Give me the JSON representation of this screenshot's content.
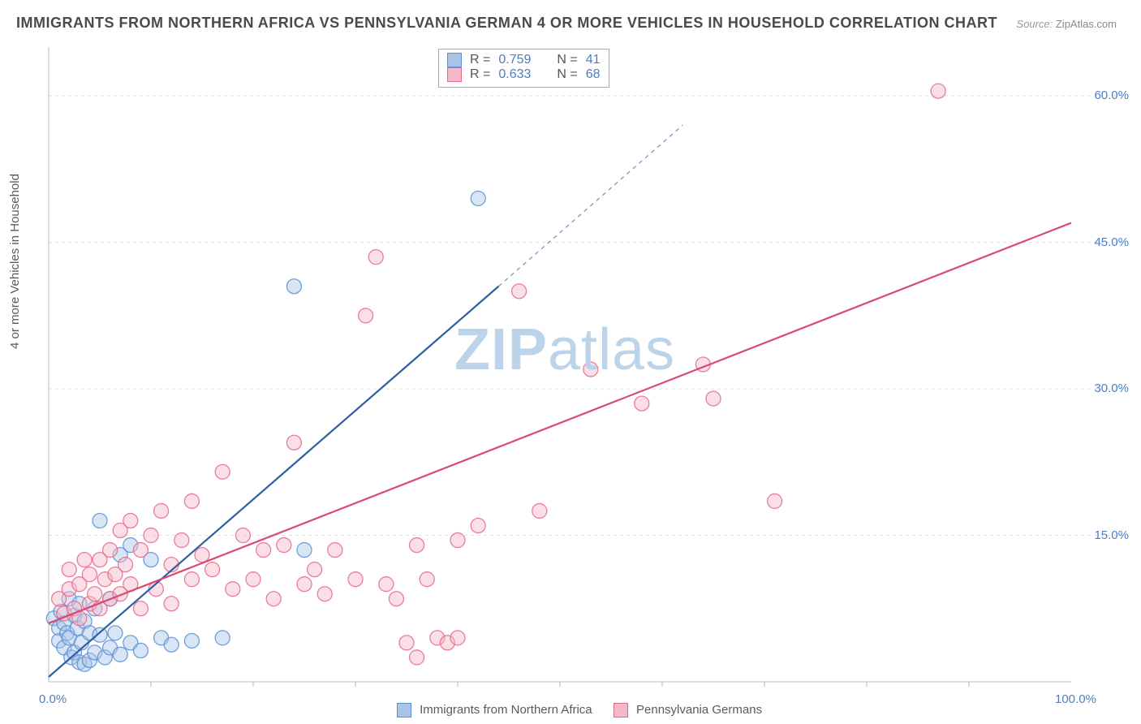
{
  "title": "IMMIGRANTS FROM NORTHERN AFRICA VS PENNSYLVANIA GERMAN 4 OR MORE VEHICLES IN HOUSEHOLD CORRELATION CHART",
  "source_label": "Source:",
  "source_value": "ZipAtlas.com",
  "watermark": "ZIPatlas",
  "y_axis_label": "4 or more Vehicles in Household",
  "bottom_legend": {
    "series1": "Immigrants from Northern Africa",
    "series2": "Pennsylvania Germans"
  },
  "chart": {
    "type": "scatter",
    "xlim": [
      0,
      100
    ],
    "ylim": [
      0,
      65
    ],
    "x_ticks": [
      0,
      100
    ],
    "x_tick_labels": [
      "0.0%",
      "100.0%"
    ],
    "y_ticks": [
      15,
      30,
      45,
      60
    ],
    "y_tick_labels": [
      "15.0%",
      "30.0%",
      "45.0%",
      "60.0%"
    ],
    "x_minor_ticks": [
      10,
      20,
      30,
      40,
      50,
      60,
      70,
      80,
      90
    ],
    "grid_color": "#e0e0e0",
    "axis_color": "#bbbbbb",
    "background_color": "#ffffff",
    "marker_radius": 9,
    "marker_opacity": 0.45,
    "series": [
      {
        "name": "Immigrants from Northern Africa",
        "color": "#5a8fd4",
        "fill": "#a8c5e8",
        "line_color": "#2e5fa3",
        "line_width": 2.2,
        "R": "0.759",
        "N": "41",
        "trend": {
          "x1": 0,
          "y1": 0.5,
          "x2": 44,
          "y2": 40.5,
          "dash_x2": 62,
          "dash_y2": 57
        },
        "points": [
          [
            0.5,
            6.5
          ],
          [
            1,
            5.5
          ],
          [
            1,
            4.2
          ],
          [
            1.2,
            7.2
          ],
          [
            1.5,
            3.5
          ],
          [
            1.5,
            6.0
          ],
          [
            1.8,
            5.0
          ],
          [
            2,
            8.5
          ],
          [
            2,
            4.5
          ],
          [
            2.2,
            2.5
          ],
          [
            2.5,
            6.8
          ],
          [
            2.5,
            3.0
          ],
          [
            2.8,
            5.5
          ],
          [
            3,
            2.0
          ],
          [
            3,
            8.0
          ],
          [
            3.2,
            4.0
          ],
          [
            3.5,
            6.2
          ],
          [
            3.5,
            1.8
          ],
          [
            4,
            5.0
          ],
          [
            4,
            2.2
          ],
          [
            4.5,
            7.5
          ],
          [
            4.5,
            3.0
          ],
          [
            5,
            16.5
          ],
          [
            5,
            4.8
          ],
          [
            5.5,
            2.5
          ],
          [
            6,
            8.5
          ],
          [
            6,
            3.5
          ],
          [
            6.5,
            5.0
          ],
          [
            7,
            13.0
          ],
          [
            7,
            2.8
          ],
          [
            8,
            14.0
          ],
          [
            8,
            4.0
          ],
          [
            9,
            3.2
          ],
          [
            10,
            12.5
          ],
          [
            11,
            4.5
          ],
          [
            12,
            3.8
          ],
          [
            14,
            4.2
          ],
          [
            17,
            4.5
          ],
          [
            24,
            40.5
          ],
          [
            25,
            13.5
          ],
          [
            42,
            49.5
          ]
        ]
      },
      {
        "name": "Pennsylvania Germans",
        "color": "#e4688a",
        "fill": "#f4b8c9",
        "line_color": "#d94a73",
        "line_width": 2.2,
        "R": "0.633",
        "N": "68",
        "trend": {
          "x1": 0,
          "y1": 6.0,
          "x2": 100,
          "y2": 47.0
        },
        "points": [
          [
            1,
            8.5
          ],
          [
            1.5,
            7.0
          ],
          [
            2,
            9.5
          ],
          [
            2,
            11.5
          ],
          [
            2.5,
            7.5
          ],
          [
            3,
            10.0
          ],
          [
            3,
            6.5
          ],
          [
            3.5,
            12.5
          ],
          [
            4,
            8.0
          ],
          [
            4,
            11.0
          ],
          [
            4.5,
            9.0
          ],
          [
            5,
            12.5
          ],
          [
            5,
            7.5
          ],
          [
            5.5,
            10.5
          ],
          [
            6,
            13.5
          ],
          [
            6,
            8.5
          ],
          [
            6.5,
            11.0
          ],
          [
            7,
            15.5
          ],
          [
            7,
            9.0
          ],
          [
            7.5,
            12.0
          ],
          [
            8,
            16.5
          ],
          [
            8,
            10.0
          ],
          [
            9,
            13.5
          ],
          [
            9,
            7.5
          ],
          [
            10,
            15.0
          ],
          [
            10.5,
            9.5
          ],
          [
            11,
            17.5
          ],
          [
            12,
            12.0
          ],
          [
            12,
            8.0
          ],
          [
            13,
            14.5
          ],
          [
            14,
            18.5
          ],
          [
            14,
            10.5
          ],
          [
            15,
            13.0
          ],
          [
            16,
            11.5
          ],
          [
            17,
            21.5
          ],
          [
            18,
            9.5
          ],
          [
            19,
            15.0
          ],
          [
            20,
            10.5
          ],
          [
            21,
            13.5
          ],
          [
            22,
            8.5
          ],
          [
            23,
            14.0
          ],
          [
            24,
            24.5
          ],
          [
            25,
            10.0
          ],
          [
            26,
            11.5
          ],
          [
            27,
            9.0
          ],
          [
            28,
            13.5
          ],
          [
            30,
            10.5
          ],
          [
            31,
            37.5
          ],
          [
            32,
            43.5
          ],
          [
            33,
            10.0
          ],
          [
            34,
            8.5
          ],
          [
            35,
            4.0
          ],
          [
            36,
            14.0
          ],
          [
            36,
            2.5
          ],
          [
            37,
            10.5
          ],
          [
            38,
            4.5
          ],
          [
            39,
            4.0
          ],
          [
            40,
            14.5
          ],
          [
            42,
            16.0
          ],
          [
            46,
            40.0
          ],
          [
            48,
            17.5
          ],
          [
            53,
            32.0
          ],
          [
            58,
            28.5
          ],
          [
            64,
            32.5
          ],
          [
            65,
            29.0
          ],
          [
            71,
            18.5
          ],
          [
            87,
            60.5
          ],
          [
            40,
            4.5
          ]
        ]
      }
    ]
  },
  "stats_box": {
    "label_R": "R =",
    "label_N": "N ="
  },
  "colors": {
    "title": "#4a4a4a",
    "tick_label": "#4a7fc4",
    "watermark": "#bcd3ea"
  }
}
